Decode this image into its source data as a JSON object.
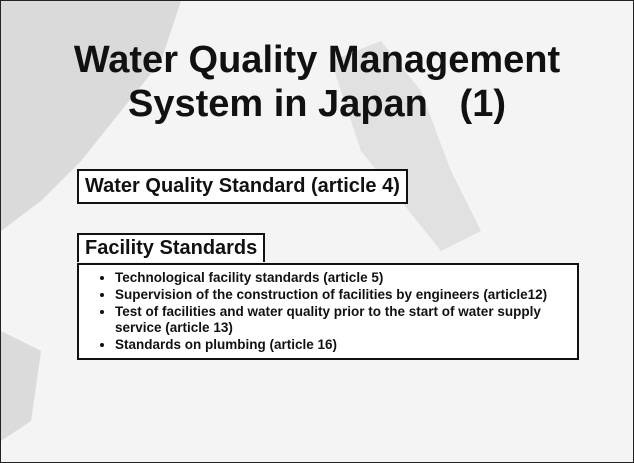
{
  "title_line1": "Water Quality Management",
  "title_line2": "System in Japan   (1)",
  "box1": "Water Quality Standard (article 4)",
  "box2": "Facility Standards",
  "bullets": [
    "Technological facility standards (article 5)",
    "Supervision of the construction of facilities by engineers (article12)",
    "Test of facilities and water quality prior to the start of water supply service (article 13)",
    "Standards on plumbing (article 16)"
  ]
}
